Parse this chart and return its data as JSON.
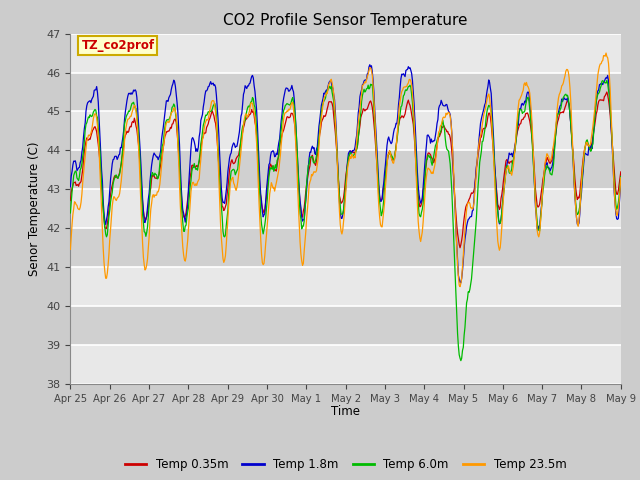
{
  "title": "CO2 Profile Sensor Temperature",
  "ylabel": "Senor Temperature (C)",
  "xlabel": "Time",
  "ylim": [
    38.0,
    47.0
  ],
  "yticks": [
    38.0,
    39.0,
    40.0,
    41.0,
    42.0,
    43.0,
    44.0,
    45.0,
    46.0,
    47.0
  ],
  "colors": {
    "Temp 0.35m": "#cc0000",
    "Temp 1.8m": "#0000cc",
    "Temp 6.0m": "#00bb00",
    "Temp 23.5m": "#ff9900"
  },
  "annotation_text": "TZ_co2prof",
  "annotation_color": "#cc0000",
  "annotation_bg": "#ffffcc",
  "annotation_border": "#ccaa00",
  "background_color": "#cccccc",
  "plot_bg_light": "#e8e8e8",
  "plot_bg_dark": "#d0d0d0",
  "grid_color": "#ffffff",
  "xtick_labels": [
    "Apr 25",
    "Apr 26",
    "Apr 27",
    "Apr 28",
    "Apr 29",
    "Apr 30",
    "May 1",
    "May 2",
    "May 3",
    "May 4",
    "May 5",
    "May 6",
    "May 7",
    "May 8",
    "May 9"
  ],
  "n_days": 14,
  "seed": 42
}
